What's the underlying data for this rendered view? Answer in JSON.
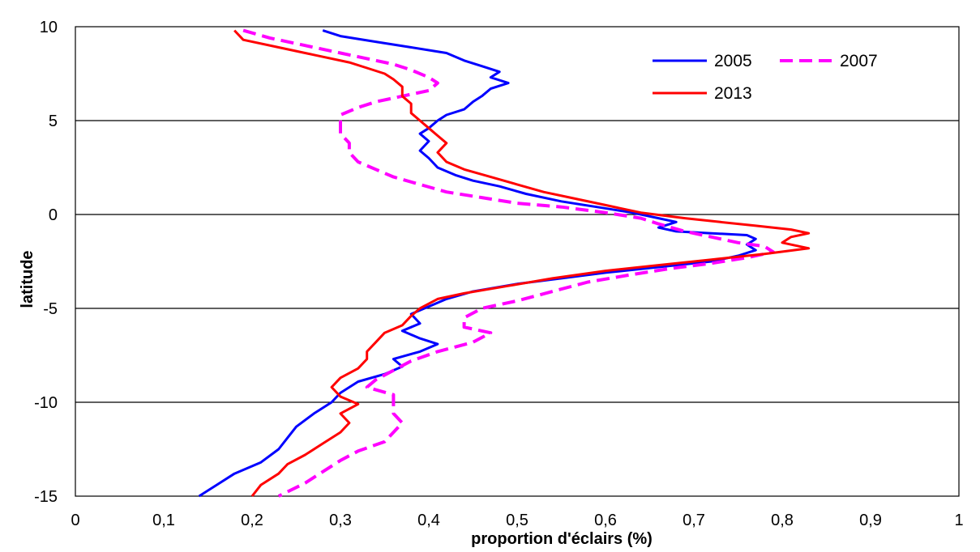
{
  "chart_data": {
    "type": "line",
    "orientation": "values along x-axis, latitude along y-axis",
    "title": "",
    "xlabel": "proportion d'éclairs (%)",
    "ylabel": "latitude",
    "xlim": [
      0,
      1
    ],
    "ylim": [
      -15,
      10
    ],
    "x_ticks": [
      "0",
      "0,1",
      "0,2",
      "0,3",
      "0,4",
      "0,5",
      "0,6",
      "0,7",
      "0,8",
      "0,9",
      "1"
    ],
    "y_ticks": [
      "10",
      "5",
      "0",
      "-5",
      "-10",
      "-15"
    ],
    "horizontal_gridlines_at": [
      5,
      0,
      -5,
      -10
    ],
    "legend_position": "top-right",
    "series": [
      {
        "name": "2005",
        "color": "#0000ff",
        "style": "solid",
        "points": [
          [
            0.28,
            9.8
          ],
          [
            0.3,
            9.5
          ],
          [
            0.34,
            9.2
          ],
          [
            0.38,
            8.9
          ],
          [
            0.42,
            8.6
          ],
          [
            0.44,
            8.2
          ],
          [
            0.46,
            7.9
          ],
          [
            0.48,
            7.6
          ],
          [
            0.47,
            7.3
          ],
          [
            0.49,
            7.0
          ],
          [
            0.47,
            6.7
          ],
          [
            0.46,
            6.3
          ],
          [
            0.45,
            6.0
          ],
          [
            0.44,
            5.6
          ],
          [
            0.42,
            5.3
          ],
          [
            0.41,
            5.0
          ],
          [
            0.4,
            4.6
          ],
          [
            0.39,
            4.3
          ],
          [
            0.4,
            3.9
          ],
          [
            0.39,
            3.4
          ],
          [
            0.4,
            3.0
          ],
          [
            0.41,
            2.5
          ],
          [
            0.43,
            2.1
          ],
          [
            0.45,
            1.8
          ],
          [
            0.48,
            1.5
          ],
          [
            0.51,
            1.1
          ],
          [
            0.55,
            0.7
          ],
          [
            0.59,
            0.4
          ],
          [
            0.63,
            0.1
          ],
          [
            0.66,
            -0.2
          ],
          [
            0.68,
            -0.4
          ],
          [
            0.66,
            -0.7
          ],
          [
            0.68,
            -0.9
          ],
          [
            0.72,
            -1.0
          ],
          [
            0.76,
            -1.1
          ],
          [
            0.77,
            -1.3
          ],
          [
            0.76,
            -1.6
          ],
          [
            0.77,
            -1.9
          ],
          [
            0.75,
            -2.2
          ],
          [
            0.72,
            -2.5
          ],
          [
            0.66,
            -2.8
          ],
          [
            0.6,
            -3.1
          ],
          [
            0.55,
            -3.4
          ],
          [
            0.5,
            -3.7
          ],
          [
            0.45,
            -4.1
          ],
          [
            0.42,
            -4.5
          ],
          [
            0.4,
            -4.9
          ],
          [
            0.38,
            -5.3
          ],
          [
            0.39,
            -5.8
          ],
          [
            0.37,
            -6.2
          ],
          [
            0.39,
            -6.6
          ],
          [
            0.41,
            -6.9
          ],
          [
            0.39,
            -7.3
          ],
          [
            0.36,
            -7.7
          ],
          [
            0.37,
            -8.1
          ],
          [
            0.35,
            -8.5
          ],
          [
            0.32,
            -8.9
          ],
          [
            0.3,
            -9.5
          ],
          [
            0.29,
            -10.0
          ],
          [
            0.27,
            -10.6
          ],
          [
            0.25,
            -11.3
          ],
          [
            0.24,
            -11.9
          ],
          [
            0.23,
            -12.5
          ],
          [
            0.21,
            -13.2
          ],
          [
            0.18,
            -13.8
          ],
          [
            0.16,
            -14.4
          ],
          [
            0.14,
            -15.0
          ]
        ]
      },
      {
        "name": "2007",
        "color": "#ff00ff",
        "style": "dashed",
        "points": [
          [
            0.19,
            9.8
          ],
          [
            0.22,
            9.4
          ],
          [
            0.26,
            9.0
          ],
          [
            0.3,
            8.6
          ],
          [
            0.33,
            8.3
          ],
          [
            0.36,
            8.0
          ],
          [
            0.38,
            7.7
          ],
          [
            0.4,
            7.3
          ],
          [
            0.41,
            7.0
          ],
          [
            0.4,
            6.6
          ],
          [
            0.37,
            6.3
          ],
          [
            0.34,
            6.0
          ],
          [
            0.32,
            5.7
          ],
          [
            0.3,
            5.3
          ],
          [
            0.3,
            4.8
          ],
          [
            0.3,
            4.3
          ],
          [
            0.31,
            3.8
          ],
          [
            0.31,
            3.3
          ],
          [
            0.32,
            2.8
          ],
          [
            0.34,
            2.4
          ],
          [
            0.36,
            2.0
          ],
          [
            0.39,
            1.6
          ],
          [
            0.42,
            1.2
          ],
          [
            0.46,
            0.9
          ],
          [
            0.5,
            0.6
          ],
          [
            0.55,
            0.4
          ],
          [
            0.6,
            0.1
          ],
          [
            0.64,
            -0.2
          ],
          [
            0.66,
            -0.5
          ],
          [
            0.69,
            -0.9
          ],
          [
            0.72,
            -1.2
          ],
          [
            0.75,
            -1.5
          ],
          [
            0.78,
            -1.7
          ],
          [
            0.79,
            -2.0
          ],
          [
            0.76,
            -2.3
          ],
          [
            0.72,
            -2.6
          ],
          [
            0.67,
            -2.9
          ],
          [
            0.63,
            -3.2
          ],
          [
            0.58,
            -3.6
          ],
          [
            0.54,
            -4.1
          ],
          [
            0.5,
            -4.6
          ],
          [
            0.46,
            -5.0
          ],
          [
            0.44,
            -5.5
          ],
          [
            0.44,
            -6.0
          ],
          [
            0.47,
            -6.3
          ],
          [
            0.45,
            -6.8
          ],
          [
            0.41,
            -7.3
          ],
          [
            0.38,
            -7.8
          ],
          [
            0.36,
            -8.3
          ],
          [
            0.34,
            -8.8
          ],
          [
            0.33,
            -9.2
          ],
          [
            0.36,
            -9.6
          ],
          [
            0.36,
            -10.1
          ],
          [
            0.36,
            -10.6
          ],
          [
            0.37,
            -11.1
          ],
          [
            0.36,
            -11.6
          ],
          [
            0.35,
            -12.1
          ],
          [
            0.32,
            -12.6
          ],
          [
            0.3,
            -13.1
          ],
          [
            0.28,
            -13.7
          ],
          [
            0.26,
            -14.3
          ],
          [
            0.23,
            -15.0
          ]
        ]
      },
      {
        "name": "2013",
        "color": "#ff0000",
        "style": "solid",
        "points": [
          [
            0.18,
            9.8
          ],
          [
            0.19,
            9.3
          ],
          [
            0.23,
            8.9
          ],
          [
            0.27,
            8.5
          ],
          [
            0.31,
            8.1
          ],
          [
            0.33,
            7.8
          ],
          [
            0.35,
            7.5
          ],
          [
            0.36,
            7.2
          ],
          [
            0.37,
            6.8
          ],
          [
            0.37,
            6.3
          ],
          [
            0.38,
            5.9
          ],
          [
            0.38,
            5.4
          ],
          [
            0.39,
            5.0
          ],
          [
            0.4,
            4.6
          ],
          [
            0.41,
            4.2
          ],
          [
            0.42,
            3.8
          ],
          [
            0.41,
            3.3
          ],
          [
            0.42,
            2.8
          ],
          [
            0.44,
            2.4
          ],
          [
            0.47,
            2.0
          ],
          [
            0.5,
            1.6
          ],
          [
            0.53,
            1.2
          ],
          [
            0.56,
            0.9
          ],
          [
            0.6,
            0.5
          ],
          [
            0.64,
            0.1
          ],
          [
            0.69,
            -0.2
          ],
          [
            0.73,
            -0.4
          ],
          [
            0.77,
            -0.6
          ],
          [
            0.81,
            -0.8
          ],
          [
            0.83,
            -1.0
          ],
          [
            0.81,
            -1.2
          ],
          [
            0.8,
            -1.5
          ],
          [
            0.83,
            -1.8
          ],
          [
            0.78,
            -2.1
          ],
          [
            0.72,
            -2.4
          ],
          [
            0.66,
            -2.7
          ],
          [
            0.6,
            -3.0
          ],
          [
            0.54,
            -3.4
          ],
          [
            0.49,
            -3.8
          ],
          [
            0.44,
            -4.2
          ],
          [
            0.41,
            -4.5
          ],
          [
            0.39,
            -5.0
          ],
          [
            0.38,
            -5.4
          ],
          [
            0.37,
            -5.9
          ],
          [
            0.35,
            -6.3
          ],
          [
            0.34,
            -6.8
          ],
          [
            0.33,
            -7.3
          ],
          [
            0.33,
            -7.7
          ],
          [
            0.32,
            -8.2
          ],
          [
            0.3,
            -8.7
          ],
          [
            0.29,
            -9.2
          ],
          [
            0.3,
            -9.7
          ],
          [
            0.32,
            -10.1
          ],
          [
            0.3,
            -10.6
          ],
          [
            0.31,
            -11.1
          ],
          [
            0.3,
            -11.6
          ],
          [
            0.28,
            -12.2
          ],
          [
            0.26,
            -12.8
          ],
          [
            0.24,
            -13.3
          ],
          [
            0.23,
            -13.8
          ],
          [
            0.21,
            -14.4
          ],
          [
            0.2,
            -15.0
          ]
        ]
      }
    ]
  }
}
